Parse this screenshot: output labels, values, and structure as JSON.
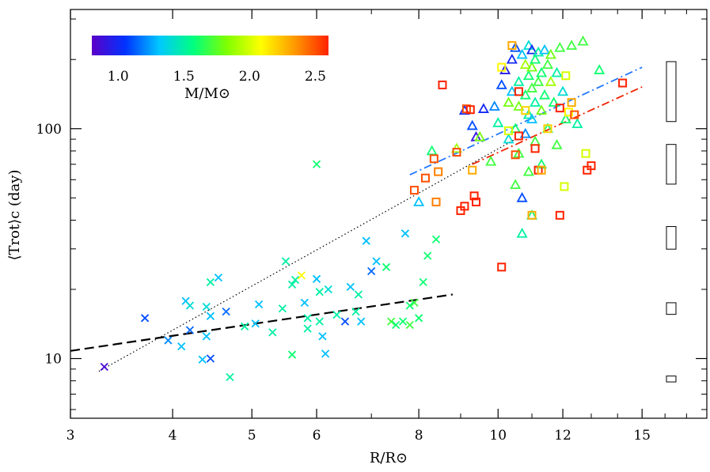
{
  "chart_data": {
    "type": "scatter",
    "xlabel": "R/R⊙",
    "ylabel": "⟨Trot⟩c (day)",
    "x_scale": "log",
    "y_scale": "log",
    "xlim": [
      3,
      18
    ],
    "ylim": [
      5.5,
      330
    ],
    "x_ticks": [
      3,
      4,
      5,
      6,
      8,
      10,
      12,
      15
    ],
    "x_tick_labels": [
      "3",
      "4",
      "5",
      "6",
      "8",
      "10",
      "12",
      "15"
    ],
    "y_ticks": [
      10,
      100
    ],
    "y_tick_labels": [
      "10",
      "100"
    ],
    "colorbar": {
      "label": "M/M⊙",
      "range": [
        0.8,
        2.6
      ],
      "ticks": [
        1.0,
        1.5,
        2.0,
        2.5
      ],
      "tick_labels": [
        "1.0",
        "1.5",
        "2.0",
        "2.5"
      ],
      "colors": [
        "#5a00c8",
        "#0033ff",
        "#00c8ff",
        "#00ff80",
        "#80ff00",
        "#ffff00",
        "#ff9900",
        "#ff2200"
      ]
    },
    "series": [
      {
        "marker": "x",
        "points": [
          [
            3.3,
            9.2,
            0.85
          ],
          [
            3.7,
            15.0,
            1.1
          ],
          [
            3.95,
            12.0,
            1.2
          ],
          [
            4.1,
            11.3,
            1.3
          ],
          [
            4.15,
            17.8,
            1.3
          ],
          [
            4.2,
            17.0,
            1.4
          ],
          [
            4.2,
            13.3,
            1.15
          ],
          [
            4.35,
            9.9,
            1.3
          ],
          [
            4.45,
            10.0,
            1.1
          ],
          [
            4.4,
            12.5,
            1.3
          ],
          [
            4.45,
            15.3,
            1.3
          ],
          [
            4.45,
            21.5,
            1.5
          ],
          [
            4.55,
            22.5,
            1.3
          ],
          [
            4.65,
            16.0,
            1.15
          ],
          [
            4.7,
            8.3,
            1.5
          ],
          [
            4.4,
            16.8,
            1.4
          ],
          [
            4.9,
            13.8,
            1.5
          ],
          [
            5.05,
            14.2,
            1.3
          ],
          [
            5.1,
            17.2,
            1.3
          ],
          [
            5.3,
            13.0,
            1.5
          ],
          [
            5.45,
            16.5,
            1.5
          ],
          [
            5.5,
            26.5,
            1.5
          ],
          [
            5.6,
            21.0,
            1.5
          ],
          [
            5.65,
            22.0,
            1.5
          ],
          [
            5.75,
            23.0,
            2.1
          ],
          [
            5.6,
            10.4,
            1.6
          ],
          [
            5.8,
            17.5,
            1.3
          ],
          [
            5.85,
            15.0,
            1.5
          ],
          [
            5.85,
            13.5,
            1.5
          ],
          [
            6.0,
            22.2,
            1.3
          ],
          [
            6.05,
            19.5,
            1.5
          ],
          [
            6.05,
            14.5,
            1.5
          ],
          [
            6.1,
            12.5,
            1.3
          ],
          [
            6.15,
            10.5,
            1.3
          ],
          [
            6.2,
            20.0,
            1.4
          ],
          [
            6.0,
            70.0,
            1.6
          ],
          [
            6.35,
            15.5,
            1.5
          ],
          [
            6.5,
            14.5,
            1.1
          ],
          [
            6.6,
            20.5,
            1.3
          ],
          [
            6.7,
            16.0,
            1.5
          ],
          [
            6.75,
            19.0,
            1.5
          ],
          [
            6.8,
            14.5,
            1.3
          ],
          [
            6.9,
            32.5,
            1.3
          ],
          [
            7.0,
            24.0,
            1.15
          ],
          [
            7.1,
            26.5,
            1.3
          ],
          [
            7.3,
            25.0,
            1.6
          ],
          [
            7.4,
            14.5,
            1.7
          ],
          [
            7.5,
            14.0,
            1.6
          ],
          [
            7.65,
            14.5,
            1.6
          ],
          [
            7.7,
            35.0,
            1.3
          ],
          [
            7.8,
            14.0,
            1.7
          ],
          [
            7.9,
            17.5,
            1.7
          ],
          [
            8.0,
            15.0,
            1.6
          ],
          [
            8.1,
            21.5,
            1.6
          ],
          [
            8.2,
            28.0,
            1.6
          ],
          [
            8.4,
            33.0,
            1.6
          ],
          [
            7.8,
            17.0,
            1.6
          ]
        ]
      },
      {
        "marker": "triangle",
        "points": [
          [
            8.0,
            48.0,
            1.3
          ],
          [
            8.3,
            80.0,
            1.6
          ],
          [
            8.9,
            82.0,
            1.9
          ],
          [
            9.1,
            120.0,
            1.0
          ],
          [
            9.3,
            103.0,
            1.1
          ],
          [
            9.4,
            92.0,
            0.9
          ],
          [
            9.5,
            92.0,
            1.8
          ],
          [
            9.6,
            122.0,
            1.0
          ],
          [
            9.8,
            72.0,
            1.7
          ],
          [
            9.9,
            125.0,
            1.2
          ],
          [
            10.0,
            106.0,
            1.5
          ],
          [
            10.1,
            155.0,
            1.1
          ],
          [
            10.2,
            180.0,
            0.95
          ],
          [
            10.3,
            130.0,
            1.8
          ],
          [
            10.3,
            90.0,
            1.4
          ],
          [
            10.4,
            200.0,
            1.0
          ],
          [
            10.4,
            145.0,
            1.3
          ],
          [
            10.5,
            225.0,
            1.1
          ],
          [
            10.5,
            100.0,
            1.6
          ],
          [
            10.6,
            160.0,
            1.5
          ],
          [
            10.6,
            125.0,
            1.8
          ],
          [
            10.6,
            78.0,
            1.7
          ],
          [
            10.7,
            210.0,
            1.3
          ],
          [
            10.7,
            50.0,
            1.1
          ],
          [
            10.7,
            35.0,
            1.5
          ],
          [
            10.8,
            190.0,
            1.9
          ],
          [
            10.8,
            140.0,
            1.6
          ],
          [
            10.8,
            95.0,
            1.2
          ],
          [
            10.9,
            230.0,
            1.4
          ],
          [
            10.9,
            170.0,
            1.6
          ],
          [
            10.9,
            115.0,
            1.5
          ],
          [
            10.9,
            65.0,
            1.7
          ],
          [
            11.0,
            220.0,
            1.0
          ],
          [
            11.0,
            185.0,
            1.8
          ],
          [
            11.0,
            150.0,
            1.7
          ],
          [
            11.0,
            110.0,
            1.3
          ],
          [
            11.1,
            200.0,
            1.6
          ],
          [
            11.1,
            130.0,
            1.5
          ],
          [
            11.1,
            88.0,
            1.7
          ],
          [
            11.2,
            215.0,
            1.5
          ],
          [
            11.2,
            160.0,
            1.7
          ],
          [
            11.3,
            175.0,
            1.6
          ],
          [
            11.3,
            120.0,
            1.8
          ],
          [
            11.3,
            70.0,
            1.6
          ],
          [
            11.4,
            220.0,
            1.3
          ],
          [
            11.4,
            140.0,
            1.6
          ],
          [
            11.5,
            190.0,
            1.7
          ],
          [
            11.5,
            100.0,
            1.6
          ],
          [
            11.6,
            160.0,
            1.9
          ],
          [
            11.6,
            210.0,
            1.8
          ],
          [
            11.7,
            130.0,
            1.6
          ],
          [
            11.8,
            85.0,
            1.7
          ],
          [
            11.8,
            175.0,
            1.5
          ],
          [
            11.9,
            225.0,
            1.7
          ],
          [
            12.0,
            145.0,
            1.4
          ],
          [
            12.1,
            110.0,
            1.6
          ],
          [
            12.3,
            230.0,
            1.7
          ],
          [
            12.5,
            105.0,
            1.5
          ],
          [
            12.7,
            240.0,
            1.7
          ],
          [
            13.3,
            180.0,
            1.6
          ],
          [
            10.5,
            57.0,
            1.7
          ],
          [
            11.0,
            42.0,
            1.6
          ]
        ]
      },
      {
        "marker": "square",
        "points": [
          [
            7.9,
            54.0,
            2.5
          ],
          [
            8.15,
            61.0,
            2.5
          ],
          [
            8.35,
            74.0,
            2.5
          ],
          [
            8.4,
            48.0,
            2.4
          ],
          [
            8.45,
            65.0,
            2.4
          ],
          [
            8.55,
            155.0,
            2.6
          ],
          [
            8.9,
            79.0,
            2.5
          ],
          [
            9.0,
            44.0,
            2.6
          ],
          [
            9.1,
            46.0,
            2.6
          ],
          [
            9.15,
            122.0,
            2.5
          ],
          [
            9.25,
            121.0,
            2.6
          ],
          [
            9.3,
            66.0,
            2.3
          ],
          [
            9.35,
            51.0,
            2.6
          ],
          [
            9.4,
            48.0,
            2.6
          ],
          [
            10.1,
            25.0,
            2.6
          ],
          [
            10.4,
            230.0,
            2.3
          ],
          [
            10.5,
            77.0,
            2.5
          ],
          [
            10.6,
            93.0,
            2.6
          ],
          [
            10.6,
            145.0,
            2.6
          ],
          [
            10.8,
            120.0,
            2.2
          ],
          [
            11.0,
            42.0,
            2.3
          ],
          [
            11.1,
            82.0,
            2.6
          ],
          [
            11.2,
            66.0,
            2.6
          ],
          [
            11.3,
            66.0,
            2.3
          ],
          [
            11.9,
            42.0,
            2.6
          ],
          [
            11.9,
            123.0,
            2.6
          ],
          [
            12.05,
            56.0,
            2.0
          ],
          [
            12.1,
            170.0,
            2.0
          ],
          [
            12.2,
            118.0,
            2.1
          ],
          [
            12.3,
            130.0,
            2.3
          ],
          [
            12.4,
            115.0,
            2.5
          ],
          [
            12.8,
            78.0,
            2.0
          ],
          [
            12.85,
            66.0,
            2.6
          ],
          [
            13.0,
            69.0,
            2.6
          ],
          [
            14.2,
            158.0,
            2.6
          ],
          [
            10.3,
            98.0,
            2.0
          ],
          [
            11.5,
            100.0,
            2.2
          ],
          [
            10.1,
            185.0,
            2.1
          ]
        ]
      }
    ],
    "fit_lines": [
      {
        "style": "dashed",
        "color": "#000000",
        "x": [
          3.0,
          8.8
        ],
        "y": [
          10.8,
          19.0
        ]
      },
      {
        "style": "dotted",
        "color": "#000000",
        "x": [
          3.25,
          10.5
        ],
        "y": [
          8.8,
          90.0
        ]
      },
      {
        "style": "dash-dot",
        "color": "#2277ff",
        "x": [
          7.8,
          15.0
        ],
        "y": [
          63.0,
          185.0
        ]
      },
      {
        "style": "dash-dot",
        "color": "#ee2200",
        "x": [
          9.3,
          15.0
        ],
        "y": [
          70.0,
          152.0
        ]
      }
    ],
    "error_boxes": [
      {
        "y": 145.0,
        "height_factor": 1.35
      },
      {
        "y": 70.0,
        "height_factor": 1.22
      },
      {
        "y": 33.5,
        "height_factor": 1.12
      },
      {
        "y": 16.5,
        "height_factor": 1.06
      },
      {
        "y": 8.15,
        "height_factor": 1.03
      }
    ]
  }
}
